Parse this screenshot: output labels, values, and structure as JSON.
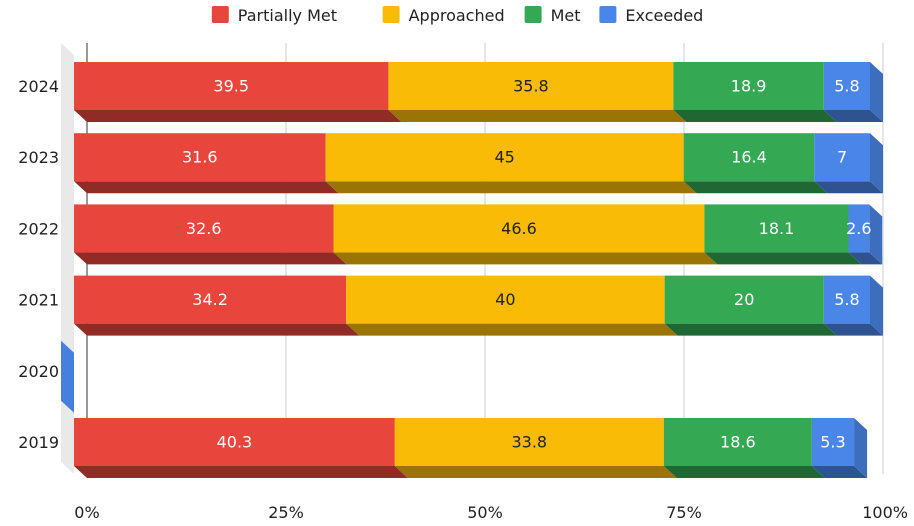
{
  "chart_data": {
    "type": "bar",
    "orientation": "horizontal",
    "stacked": true,
    "style": "3d",
    "categories": [
      "2024",
      "2023",
      "2022",
      "2021",
      "2020",
      "2019"
    ],
    "series": [
      {
        "name": "Partially Met",
        "color": "#e8453c",
        "label_color": "#ffffff",
        "values": [
          39.5,
          31.6,
          32.6,
          34.2,
          null,
          40.3
        ]
      },
      {
        "name": "Approached",
        "color": "#f9bb06",
        "label_color": "#222222",
        "values": [
          35.8,
          45,
          46.6,
          40,
          null,
          33.8
        ]
      },
      {
        "name": "Met",
        "color": "#34a853",
        "label_color": "#ffffff",
        "values": [
          18.9,
          16.4,
          18.1,
          20,
          null,
          18.6
        ]
      },
      {
        "name": "Exceeded",
        "color": "#4a86e8",
        "label_color": "#ffffff",
        "values": [
          5.8,
          7,
          2.6,
          5.8,
          null,
          5.3
        ]
      }
    ],
    "x_ticks": [
      "0%",
      "25%",
      "50%",
      "75%",
      "100%"
    ],
    "xlim": [
      0,
      100
    ],
    "grid": true,
    "legend": "top-center",
    "title": "",
    "xlabel": "",
    "ylabel": ""
  }
}
